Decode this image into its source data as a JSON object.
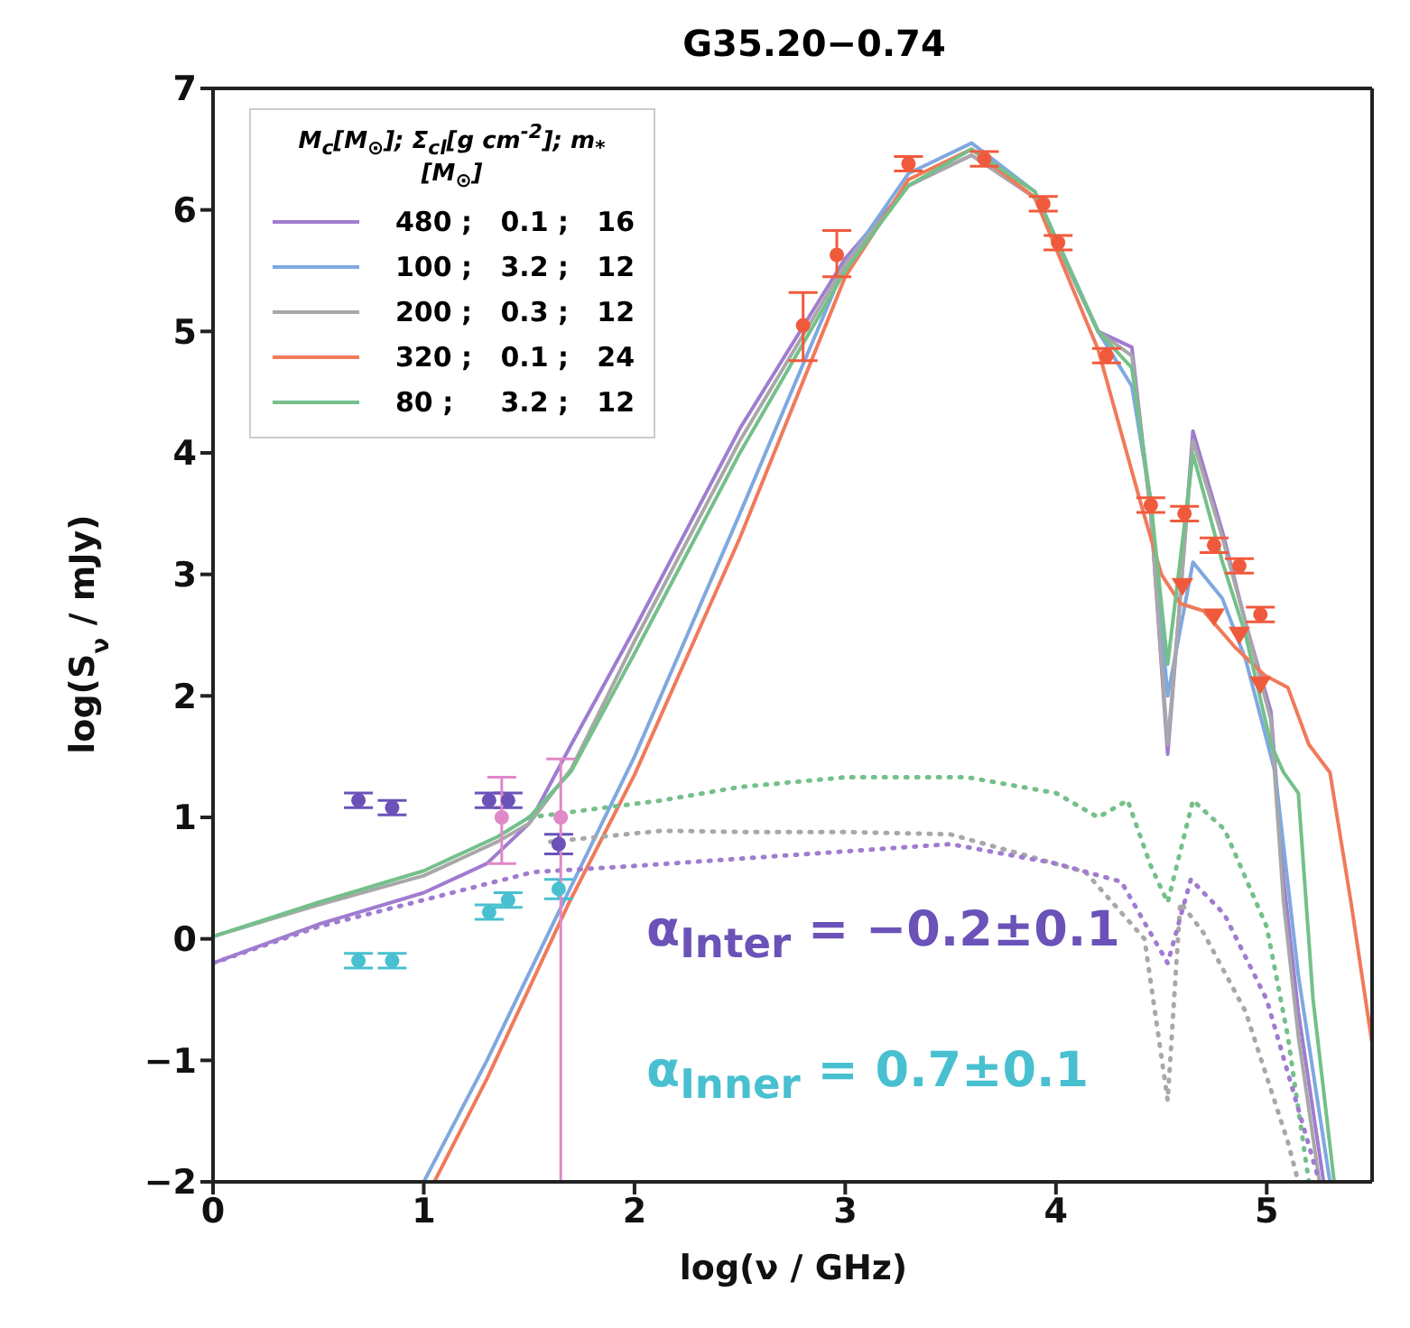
{
  "chart_data": {
    "type": "line",
    "title": "G35.20−0.74",
    "xlabel": "log(ν / GHz)",
    "ylabel": "log(S$_{ν}$ / mJy)",
    "legend_title": "M$_{c}$[M$_{⊙}$]; Σ$_{cl}$[g cm$^{-2}$]; m$_{*}$[M$_{⊙}$]",
    "xlim": [
      0,
      5.5
    ],
    "xticks": [
      0,
      1,
      2,
      3,
      4,
      5
    ],
    "ylim": [
      -2,
      7
    ],
    "yticks": [
      -2,
      -1,
      0,
      1,
      2,
      3,
      4,
      5,
      6,
      7
    ],
    "grid": false,
    "legend": "top left",
    "marker": "none",
    "line_style": "solid",
    "annotations": [
      "α$_{Inter}$ = −0.2±0.1",
      "α$_{Inner}$ = 0.7±0.1"
    ],
    "series": [
      {
        "name": "480 ;   0.1 ;   16",
        "color": "#a07cd0",
        "x": [
          0,
          0.5,
          1,
          1.3,
          1.5,
          1.7,
          2,
          2.5,
          3,
          3.3,
          3.6,
          3.9,
          4.2,
          4.36,
          4.45,
          4.53,
          4.58,
          4.65,
          4.79,
          4.9,
          5.02,
          5.08,
          5.15,
          5.27
        ],
        "values": [
          -0.2,
          0.12,
          0.38,
          0.62,
          0.95,
          1.6,
          2.55,
          4.2,
          5.6,
          6.2,
          6.45,
          6.1,
          5.0,
          4.87,
          3.5,
          1.52,
          2.6,
          4.18,
          3.35,
          2.6,
          1.87,
          0.49,
          -0.6,
          -2
        ]
      },
      {
        "name": "100 ;   3.2 ;   12",
        "color": "#7fa8e0",
        "x": [
          1,
          1.3,
          1.69,
          2,
          2.5,
          3,
          3.3,
          3.6,
          3.9,
          4.2,
          4.36,
          4.45,
          4.53,
          4.65,
          4.79,
          4.9,
          5.04,
          5.15,
          5.3
        ],
        "values": [
          -2,
          -1,
          0.4,
          1.5,
          3.5,
          5.55,
          6.3,
          6.55,
          6.15,
          5.0,
          4.55,
          3.6,
          2.0,
          3.1,
          2.8,
          2.3,
          1.37,
          -0.3,
          -2
        ]
      },
      {
        "name": "200 ;   0.3 ;   12",
        "color": "#a8a8a8",
        "x": [
          0,
          0.5,
          1,
          1.35,
          1.5,
          1.7,
          2,
          2.5,
          3,
          3.3,
          3.6,
          3.9,
          4.2,
          4.36,
          4.45,
          4.53,
          4.58,
          4.65,
          4.79,
          4.9,
          5.02,
          5.08,
          5.15,
          5.25
        ],
        "values": [
          0.02,
          0.28,
          0.52,
          0.8,
          0.95,
          1.4,
          2.45,
          4.1,
          5.55,
          6.2,
          6.45,
          6.1,
          5.0,
          4.8,
          3.5,
          1.6,
          2.6,
          4.1,
          3.3,
          2.6,
          1.8,
          0.3,
          -0.8,
          -2
        ]
      },
      {
        "name": "320 ;   0.1 ;   24",
        "color": "#f07a5a",
        "x": [
          1.05,
          1.3,
          1.69,
          2,
          2.5,
          3,
          3.3,
          3.6,
          3.9,
          4.2,
          4.4,
          4.5,
          4.59,
          4.7,
          4.85,
          4.99,
          5.1,
          5.2,
          5.3,
          5.4,
          5.5
        ],
        "values": [
          -2,
          -1.15,
          0.3,
          1.35,
          3.3,
          5.45,
          6.25,
          6.5,
          6.1,
          4.85,
          3.6,
          3.0,
          2.76,
          2.7,
          2.4,
          2.17,
          2.07,
          1.6,
          1.37,
          0.3,
          -0.86
        ]
      },
      {
        "name": "80 ;     3.2 ;   12",
        "color": "#74c08a",
        "x": [
          0,
          0.5,
          1,
          1.35,
          1.5,
          1.7,
          2,
          2.5,
          3,
          3.3,
          3.6,
          3.9,
          4.2,
          4.36,
          4.45,
          4.53,
          4.65,
          4.79,
          4.9,
          5.02,
          5.08,
          5.15,
          5.22,
          5.32
        ],
        "values": [
          0.02,
          0.3,
          0.56,
          0.84,
          1.0,
          1.38,
          2.35,
          4.0,
          5.5,
          6.2,
          6.5,
          6.15,
          5.0,
          4.7,
          3.6,
          2.26,
          3.99,
          3.1,
          2.5,
          1.6,
          1.37,
          1.2,
          -0.5,
          -2
        ]
      },
      {
        "color": "#74c08a",
        "line_style": "dotted",
        "x": [
          1.5,
          2.13,
          2.5,
          3,
          3.58,
          4,
          4.2,
          4.34,
          4.45,
          4.53,
          4.65,
          4.8,
          5,
          5.1,
          5.2
        ],
        "values": [
          1.0,
          1.14,
          1.25,
          1.33,
          1.33,
          1.2,
          1.0,
          1.14,
          0.6,
          0.3,
          1.14,
          0.9,
          0.1,
          -0.8,
          -2
        ]
      },
      {
        "color": "#a8a8a8",
        "line_style": "dotted",
        "x": [
          1.6,
          2.13,
          2.5,
          3,
          3.5,
          4.14,
          4.42,
          4.53,
          4.59,
          4.7,
          4.9,
          5.1,
          5.15
        ],
        "values": [
          0.8,
          0.89,
          0.88,
          0.88,
          0.86,
          0.55,
          0,
          -1.33,
          0.3,
          0.05,
          -0.6,
          -1.67,
          -2
        ]
      },
      {
        "color": "#a07cd0",
        "line_style": "dotted",
        "x": [
          0,
          0.5,
          1,
          1.52,
          2,
          2.5,
          3,
          3.5,
          4,
          4.31,
          4.53,
          4.64,
          4.8,
          5,
          5.13,
          5.25
        ],
        "values": [
          -0.2,
          0.1,
          0.32,
          0.55,
          0.6,
          0.66,
          0.72,
          0.78,
          0.62,
          0.47,
          -0.2,
          0.49,
          0.2,
          -0.5,
          -1.28,
          -2
        ]
      },
      {
        "type": "scatter",
        "color": "#6a52b8",
        "marker": "circle",
        "x": [
          0.69,
          0.85,
          1.31,
          1.4,
          1.64
        ],
        "values": [
          1.14,
          1.08,
          1.14,
          1.14,
          0.78
        ],
        "errors": [
          0.06,
          0.06,
          0.06,
          0.06,
          0.08
        ]
      },
      {
        "type": "scatter",
        "color": "#48c0d0",
        "marker": "circle",
        "x": [
          0.69,
          0.85,
          1.31,
          1.4,
          1.64
        ],
        "values": [
          -0.18,
          -0.18,
          0.22,
          0.32,
          0.41
        ],
        "errors": [
          0.06,
          0.06,
          0.06,
          0.06,
          0.08
        ]
      },
      {
        "type": "scatter",
        "color": "#e088c8",
        "marker": "circle",
        "x": [
          1.37,
          1.65
        ],
        "values": [
          1.0,
          1.0
        ],
        "errors": [
          [
            0.62,
            1.33
          ],
          [
            -2,
            1.48
          ]
        ]
      },
      {
        "type": "scatter",
        "color": "#f05a3c",
        "marker": "circle",
        "x": [
          2.8,
          2.96,
          3.3,
          3.66,
          3.94,
          4.01,
          4.24,
          4.45,
          4.61,
          4.75,
          4.87,
          4.97
        ],
        "values": [
          5.05,
          5.63,
          6.38,
          6.42,
          6.05,
          5.73,
          4.8,
          3.57,
          3.5,
          3.24,
          3.07,
          2.67
        ],
        "errors": [
          [
            4.76,
            5.32
          ],
          [
            5.45,
            5.83
          ],
          0.06,
          0.06,
          0.06,
          0.06,
          0.06,
          0.06,
          0.06,
          0.06,
          0.06,
          0.06
        ]
      },
      {
        "type": "scatter",
        "color": "#f05a3c",
        "marker": "triangle",
        "x": [
          4.6,
          4.75,
          4.87,
          4.97
        ],
        "values": [
          2.91,
          2.66,
          2.51,
          2.1
        ]
      }
    ]
  }
}
